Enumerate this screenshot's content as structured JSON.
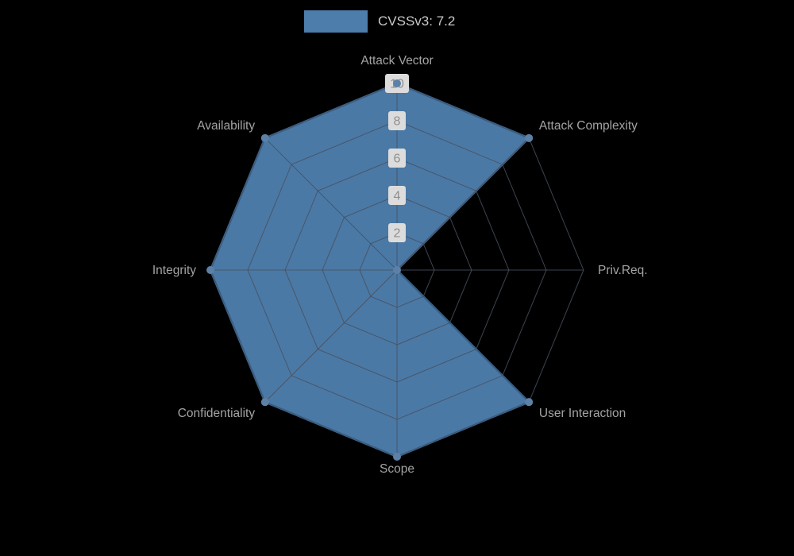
{
  "legend": {
    "label": "CVSSv3: 7.2"
  },
  "chart_data": {
    "type": "radar",
    "title": "",
    "categories": [
      "Attack Vector",
      "Attack Complexity",
      "Priv.Req.",
      "User Interaction",
      "Scope",
      "Confidentiality",
      "Integrity",
      "Availability"
    ],
    "series": [
      {
        "name": "CVSSv3: 7.2",
        "values": [
          10,
          10,
          0,
          10,
          10,
          10,
          10,
          10
        ]
      }
    ],
    "radial_axis": {
      "min": 0,
      "max": 10,
      "ticks": [
        2,
        4,
        6,
        8,
        10
      ]
    },
    "grid": "polygon rings and spokes, 8 axes",
    "legend_position": "top-center",
    "colors": {
      "series_fill": "#4d7dab",
      "series_stroke": "#3a6a99",
      "marker": "#5d81a6",
      "grid_line": "#46505e",
      "axis_label": "#a3a3a3",
      "tick_text": "#8f8f8f",
      "tick_pill_bg": "#dcdcdc",
      "legend_text": "#c9c9c9",
      "background": "#000000"
    }
  }
}
